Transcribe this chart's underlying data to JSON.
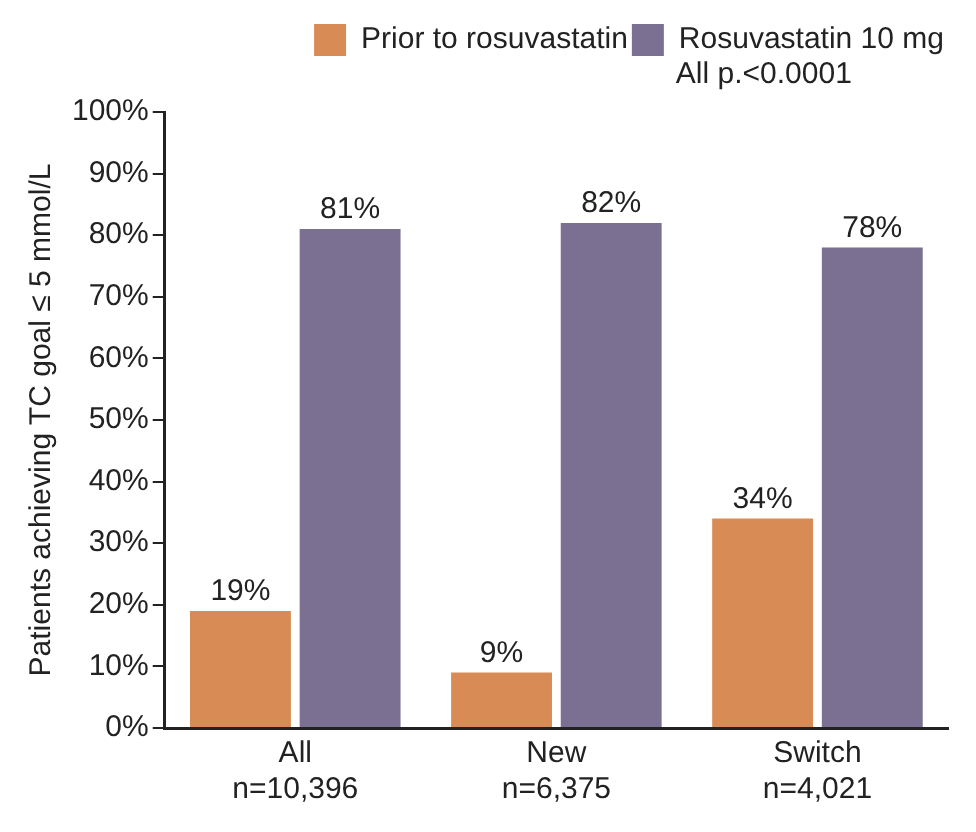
{
  "chart_data": {
    "type": "bar",
    "ylabel": "Patients achieving TC goal ≤ 5 mmol/L",
    "categories": [
      "All\nn=10,396",
      "New\nn=6,375",
      "Switch\nn=4,021"
    ],
    "series": [
      {
        "name": "Prior to rosuvastatin",
        "color": "#d98b55",
        "values": [
          19,
          9,
          34
        ],
        "value_labels": [
          "19%",
          "9%",
          "34%"
        ]
      },
      {
        "name": "Rosuvastatin 10 mg",
        "color": "#7b6f92",
        "values": [
          81,
          82,
          78
        ],
        "value_labels": [
          "81%",
          "82%",
          "78%"
        ]
      }
    ],
    "ylim": [
      0,
      100
    ],
    "yticks": [
      {
        "value": 0,
        "label": "0%"
      },
      {
        "value": 10,
        "label": "10%"
      },
      {
        "value": 20,
        "label": "20%"
      },
      {
        "value": 30,
        "label": "30%"
      },
      {
        "value": 40,
        "label": "40%"
      },
      {
        "value": 50,
        "label": "50%"
      },
      {
        "value": 60,
        "label": "60%"
      },
      {
        "value": 70,
        "label": "70%"
      },
      {
        "value": 80,
        "label": "80%"
      },
      {
        "value": 90,
        "label": "90%"
      },
      {
        "value": 100,
        "label": "100%"
      }
    ],
    "annotations": [
      "All p.<0.0001"
    ],
    "legend": "top right",
    "grid": false
  }
}
